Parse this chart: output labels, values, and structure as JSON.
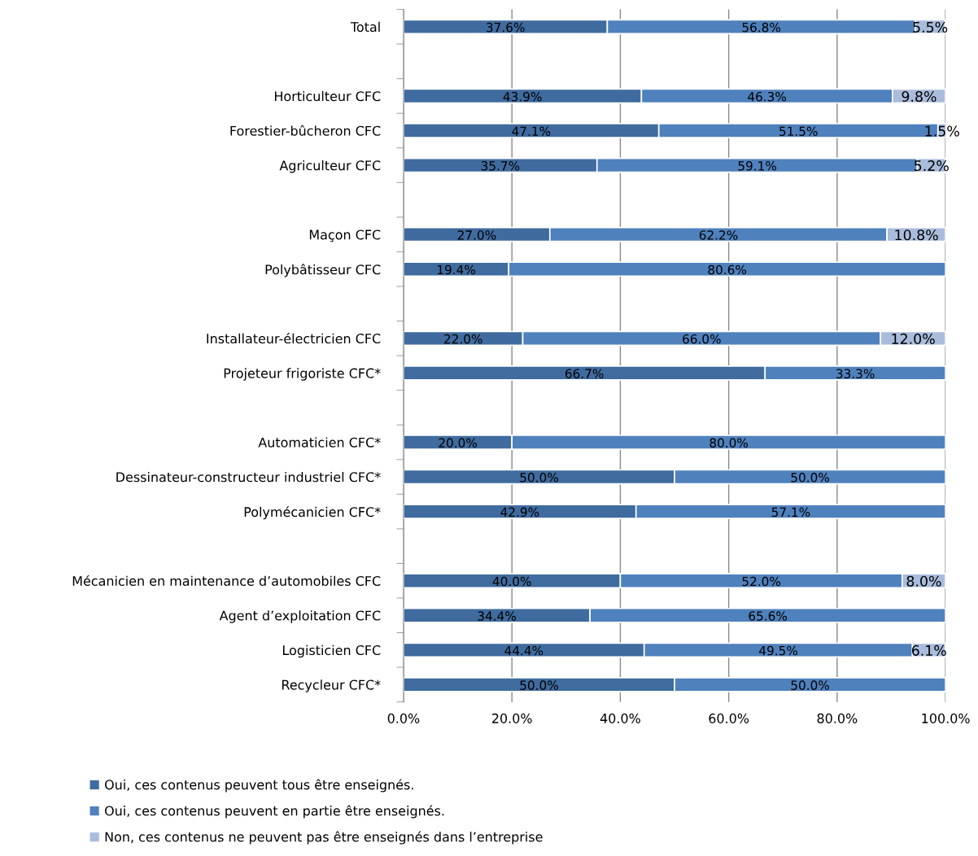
{
  "chart_data": {
    "type": "bar",
    "orientation": "horizontal",
    "stacked": true,
    "grid": "x",
    "legend": "bottom",
    "categories": [
      "Total",
      null,
      "Horticulteur CFC",
      "Forestier-bûcheron CFC",
      "Agriculteur CFC",
      null,
      "Maçon CFC",
      "Polybâtisseur CFC",
      null,
      "Installateur-électricien CFC",
      "Projeteur frigoriste CFC*",
      null,
      "Automaticien CFC*",
      "Dessinateur-constructeur industriel CFC*",
      "Polymécanicien CFC*",
      null,
      "Mécanicien en maintenance d’automobiles CFC",
      "Agent d’exploitation CFC",
      "Logisticien CFC",
      "Recycleur CFC*"
    ],
    "xlim": [
      0,
      100
    ],
    "xticks": [
      {
        "value": 0,
        "label": "0.0%"
      },
      {
        "value": 20,
        "label": "20.0%"
      },
      {
        "value": 40,
        "label": "40.0%"
      },
      {
        "value": 60,
        "label": "60.0%"
      },
      {
        "value": 80,
        "label": "80.0%"
      },
      {
        "value": 100,
        "label": "100.0%"
      }
    ],
    "series": [
      {
        "name": "Oui, ces contenus peuvent tous être enseignés.",
        "color": "#3f6b9f",
        "values": [
          37.6,
          null,
          43.9,
          47.1,
          35.7,
          null,
          27.0,
          19.4,
          null,
          22.0,
          66.7,
          null,
          20.0,
          50.0,
          42.9,
          null,
          40.0,
          34.4,
          44.4,
          50.0
        ],
        "value_labels": [
          "37.6%",
          null,
          "43.9%",
          "47.1%",
          "35.7%",
          null,
          "27.0%",
          "19.4%",
          null,
          "22.0%",
          "66.7%",
          null,
          "20.0%",
          "50.0%",
          "42.9%",
          null,
          "40.0%",
          "34.4%",
          "44.4%",
          "50.0%"
        ]
      },
      {
        "name": "Oui, ces contenus peuvent en partie être enseignés.",
        "color": "#4f81bd",
        "values": [
          56.8,
          null,
          46.3,
          51.5,
          59.1,
          null,
          62.2,
          80.6,
          null,
          66.0,
          33.3,
          null,
          80.0,
          50.0,
          57.1,
          null,
          52.0,
          65.6,
          49.5,
          50.0
        ],
        "value_labels": [
          "56.8%",
          null,
          "46.3%",
          "51.5%",
          "59.1%",
          null,
          "62.2%",
          "80.6%",
          null,
          "66.0%",
          "33.3%",
          null,
          "80.0%",
          "50.0%",
          "57.1%",
          null,
          "52.0%",
          "65.6%",
          "49.5%",
          "50.0%"
        ]
      },
      {
        "name": "Non, ces contenus ne peuvent pas être enseignés dans l’entreprise",
        "color": "#aabcdc",
        "values": [
          5.5,
          null,
          9.8,
          1.5,
          5.2,
          null,
          10.8,
          null,
          null,
          12.0,
          null,
          null,
          null,
          null,
          null,
          null,
          8.0,
          null,
          6.1,
          null
        ],
        "value_labels": [
          "5.5%",
          null,
          "9.8%",
          "1.5%",
          "5.2%",
          null,
          "10.8%",
          null,
          null,
          "12.0%",
          null,
          null,
          null,
          null,
          null,
          null,
          "8.0%",
          null,
          "6.1%",
          null
        ]
      }
    ]
  }
}
